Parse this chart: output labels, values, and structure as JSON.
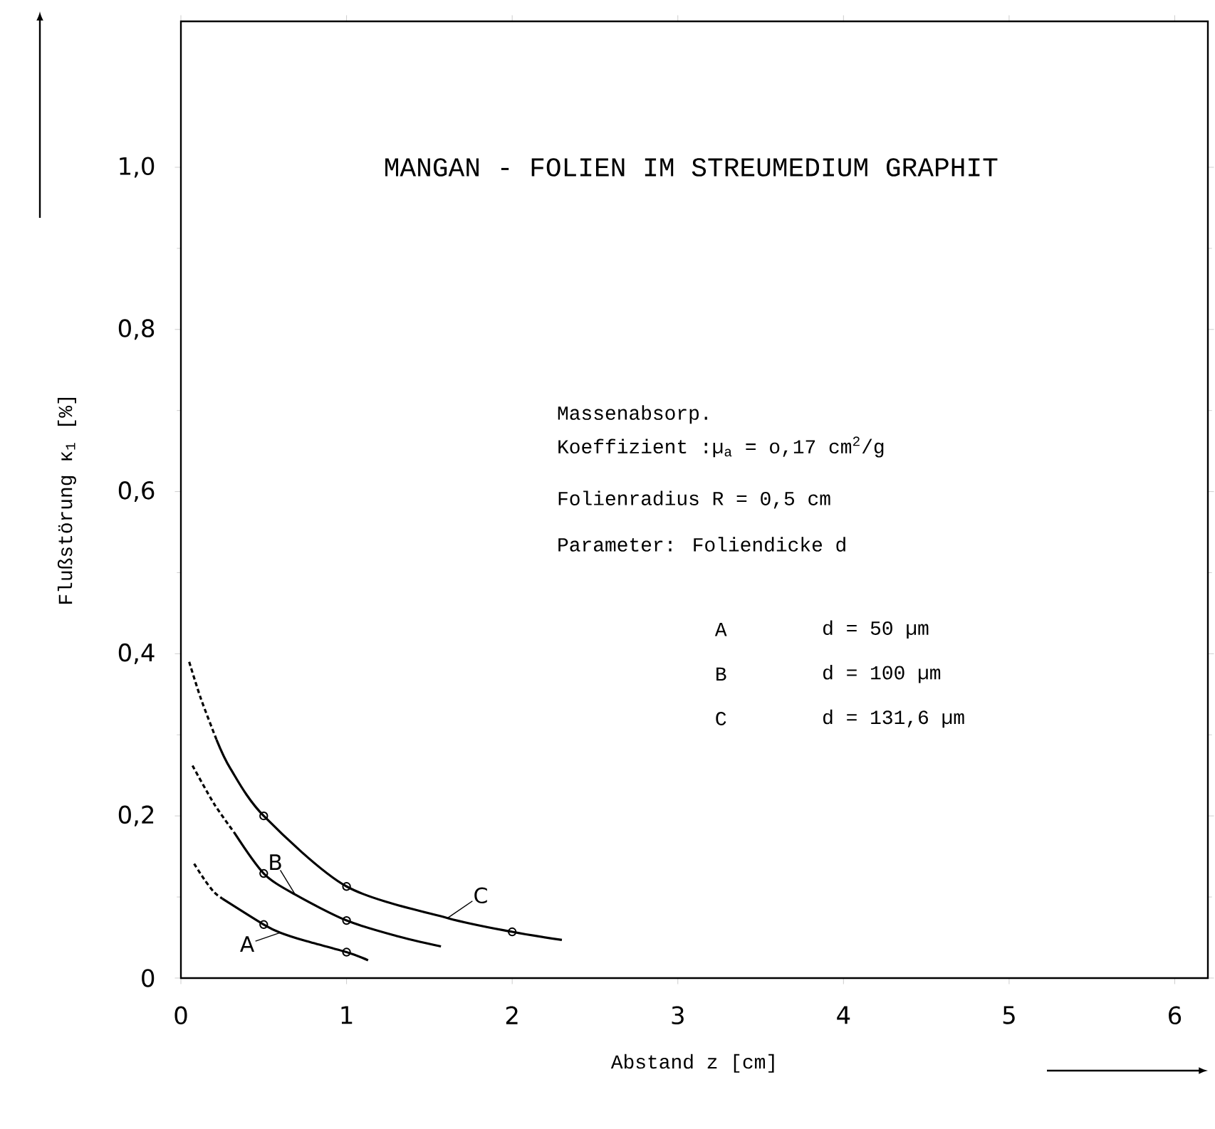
{
  "chart_data": {
    "type": "line",
    "title": "MANGAN - FOLIEN IM STREUMEDIUM GRAPHIT",
    "xlabel": "Abstand z [cm]",
    "ylabel": "Flußstörung κ$_{1}$ [%]",
    "xlim": [
      0,
      6.2
    ],
    "ylim": [
      0,
      1.18
    ],
    "xticks": [
      0,
      1,
      2,
      3,
      4,
      5,
      6
    ],
    "yticks": [
      0,
      {
        "value": 0.2,
        "label": "0,2"
      },
      {
        "value": 0.4,
        "label": "0,4"
      },
      {
        "value": 0.6,
        "label": "0,6"
      },
      {
        "value": 0.8,
        "label": "0,8"
      },
      {
        "value": 1.0,
        "label": "1,0"
      }
    ],
    "annotations": [
      "Massenabsorp.",
      "Koeffizient :µ$_{a}$ = o,17 cm$^{2}$/g",
      "Folienradius R = 0,5 cm",
      "Parameter: Foliendicke d",
      "A",
      "d = 50 µm",
      "B",
      "d = 100 µm",
      "C",
      "d = 131,6 µm"
    ],
    "series": [
      {
        "name": "A",
        "type": "line",
        "color": "#000000",
        "line_style": "solid",
        "marker": "none",
        "x": [
          0.25,
          0.5,
          0.6,
          0.75,
          1.0,
          1.13
        ],
        "values": [
          0.098,
          0.066,
          0.056,
          0.046,
          0.032,
          0.022
        ]
      },
      {
        "name": "B",
        "type": "line",
        "color": "#000000",
        "line_style": "solid",
        "marker": "none",
        "x": [
          0.32,
          0.5,
          0.69,
          1.0,
          1.3,
          1.57
        ],
        "values": [
          0.18,
          0.129,
          0.103,
          0.071,
          0.052,
          0.039
        ]
      },
      {
        "name": "C",
        "type": "line",
        "color": "#000000",
        "line_style": "solid",
        "marker": "none",
        "x": [
          0.215,
          0.3,
          0.5,
          1.0,
          1.61,
          2.0,
          2.3
        ],
        "values": [
          0.294,
          0.258,
          0.2,
          0.113,
          0.074,
          0.057,
          0.047
        ]
      },
      {
        "type": "line",
        "color": "#000000",
        "line_style": "dashed",
        "marker": "none",
        "x": [
          0.07,
          0.2,
          0.32
        ],
        "values": [
          0.262,
          0.215,
          0.18
        ]
      },
      {
        "type": "line",
        "color": "#000000",
        "line_style": "dashed",
        "marker": "none",
        "x": [
          0.05,
          0.12,
          0.215
        ],
        "values": [
          0.39,
          0.345,
          0.294
        ]
      },
      {
        "type": "line",
        "color": "#000000",
        "line_style": "dashed",
        "marker": "none",
        "x": [
          0.08,
          0.14,
          0.2,
          0.25
        ],
        "values": [
          0.141,
          0.122,
          0.106,
          0.098
        ]
      },
      {
        "type": "scatter",
        "color": "#000000",
        "marker": "circle",
        "x": [
          0.5,
          1.0,
          0.5,
          1.0,
          0.5,
          1.0,
          2.0
        ],
        "values": [
          0.066,
          0.032,
          0.129,
          0.071,
          0.2,
          0.113,
          0.057
        ]
      }
    ]
  }
}
